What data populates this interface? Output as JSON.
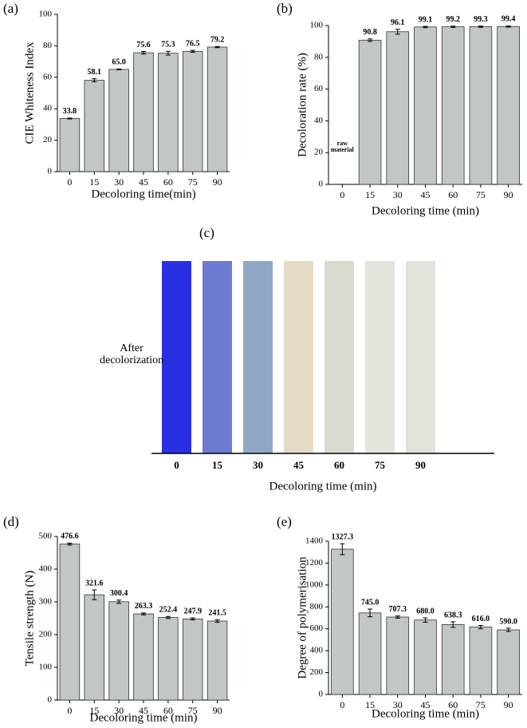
{
  "chart_data": [
    {
      "type": "bar",
      "panel": "(a)",
      "xlabel": "Decoloring time(min)",
      "ylabel": "CIE Whiteness Index",
      "categories": [
        "0",
        "15",
        "30",
        "45",
        "60",
        "75",
        "90"
      ],
      "values": [
        33.8,
        58.1,
        65.0,
        75.6,
        75.3,
        76.5,
        79.2
      ],
      "value_labels": [
        "33.8",
        "58.1",
        "65.0",
        "75.6",
        "75.3",
        "76.5",
        "79.2"
      ],
      "errors": [
        0.3,
        1.0,
        0.3,
        0.8,
        1.2,
        0.6,
        0.4
      ],
      "color": "#c1c6c7",
      "ylim": [
        0,
        100
      ],
      "yticks": [
        0,
        20,
        40,
        60,
        80,
        100
      ]
    },
    {
      "type": "bar",
      "panel": "(b)",
      "xlabel": "Decoloring time (min)",
      "ylabel": "Decoloration rate (%)",
      "categories": [
        "0",
        "15",
        "30",
        "45",
        "60",
        "75",
        "90"
      ],
      "values": [
        null,
        90.8,
        96.1,
        99.1,
        99.2,
        99.3,
        99.4
      ],
      "value_labels": [
        null,
        "90.8",
        "96.1",
        "99.1",
        "99.2",
        "99.3",
        "99.4"
      ],
      "errors": [
        null,
        0.8,
        1.5,
        0.4,
        0.4,
        0.4,
        0.4
      ],
      "annotation": {
        "text": "raw material",
        "category": "0"
      },
      "color": "#c1c6c7",
      "ylim": [
        0,
        100
      ],
      "yticks": [
        0,
        20,
        40,
        60,
        80,
        100
      ]
    },
    {
      "type": "swatch",
      "panel": "(c)",
      "xlabel": "Decoloring time (min)",
      "row_label": "After decolorization",
      "categories": [
        "0",
        "15",
        "30",
        "45",
        "60",
        "75",
        "90"
      ],
      "colors": [
        "#2b2fe4",
        "#6d7bd2",
        "#8ea7c4",
        "#e3dbc3",
        "#d7dccf",
        "#e1e5db",
        "#dfe3da"
      ]
    },
    {
      "type": "bar",
      "panel": "(d)",
      "xlabel": "Decoloring time (min)",
      "ylabel": "Tensile strength (N)",
      "categories": [
        "0",
        "15",
        "30",
        "45",
        "60",
        "75",
        "90"
      ],
      "values": [
        476.6,
        321.6,
        300.4,
        263.3,
        252.4,
        247.9,
        241.5
      ],
      "value_labels": [
        "476.6",
        "321.6",
        "300.4",
        "263.3",
        "252.4",
        "247.9",
        "241.5"
      ],
      "errors": [
        3,
        15,
        5,
        3,
        3,
        3,
        4
      ],
      "color": "#c1c6c7",
      "ylim": [
        0,
        500
      ],
      "yticks": [
        0,
        100,
        200,
        300,
        400,
        500
      ]
    },
    {
      "type": "bar",
      "panel": "(e)",
      "xlabel": "Decoloring time (min)",
      "ylabel": "Degree of polymerisation",
      "categories": [
        "0",
        "15",
        "30",
        "45",
        "60",
        "75",
        "90"
      ],
      "values": [
        1327.3,
        745.0,
        707.3,
        680.0,
        638.3,
        616.0,
        590.0
      ],
      "value_labels": [
        "1327.3",
        "745.0",
        "707.3",
        "680.0",
        "638.3",
        "616.0",
        "590.0"
      ],
      "errors": [
        50,
        35,
        10,
        20,
        25,
        15,
        15
      ],
      "color": "#c1c6c7",
      "ylim": [
        0,
        1400
      ],
      "yticks": [
        0,
        200,
        400,
        600,
        800,
        1000,
        1200,
        1400
      ]
    }
  ]
}
